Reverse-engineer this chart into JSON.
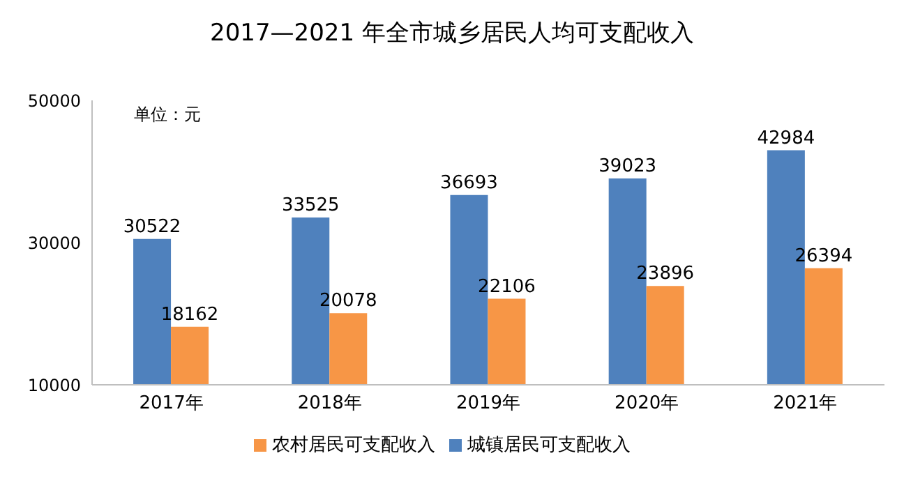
{
  "chart_data": {
    "type": "bar",
    "title": "2017—2021 年全市城乡居民人均可支配收入",
    "annotations": [
      "单位：元"
    ],
    "categories": [
      "2017年",
      "2018年",
      "2019年",
      "2020年",
      "2021年"
    ],
    "series": [
      {
        "name": "城镇居民可支配收入",
        "color": "#4f81bd",
        "values": [
          30522,
          33525,
          36693,
          39023,
          42984
        ]
      },
      {
        "name": "农村居民可支配收入",
        "color": "#f79646",
        "values": [
          18162,
          20078,
          22106,
          23896,
          26394
        ]
      }
    ],
    "ylim": [
      10000,
      50000
    ],
    "yticks": [
      10000,
      30000,
      50000
    ],
    "grid": false,
    "legend": "bottom",
    "data_labels": true
  }
}
